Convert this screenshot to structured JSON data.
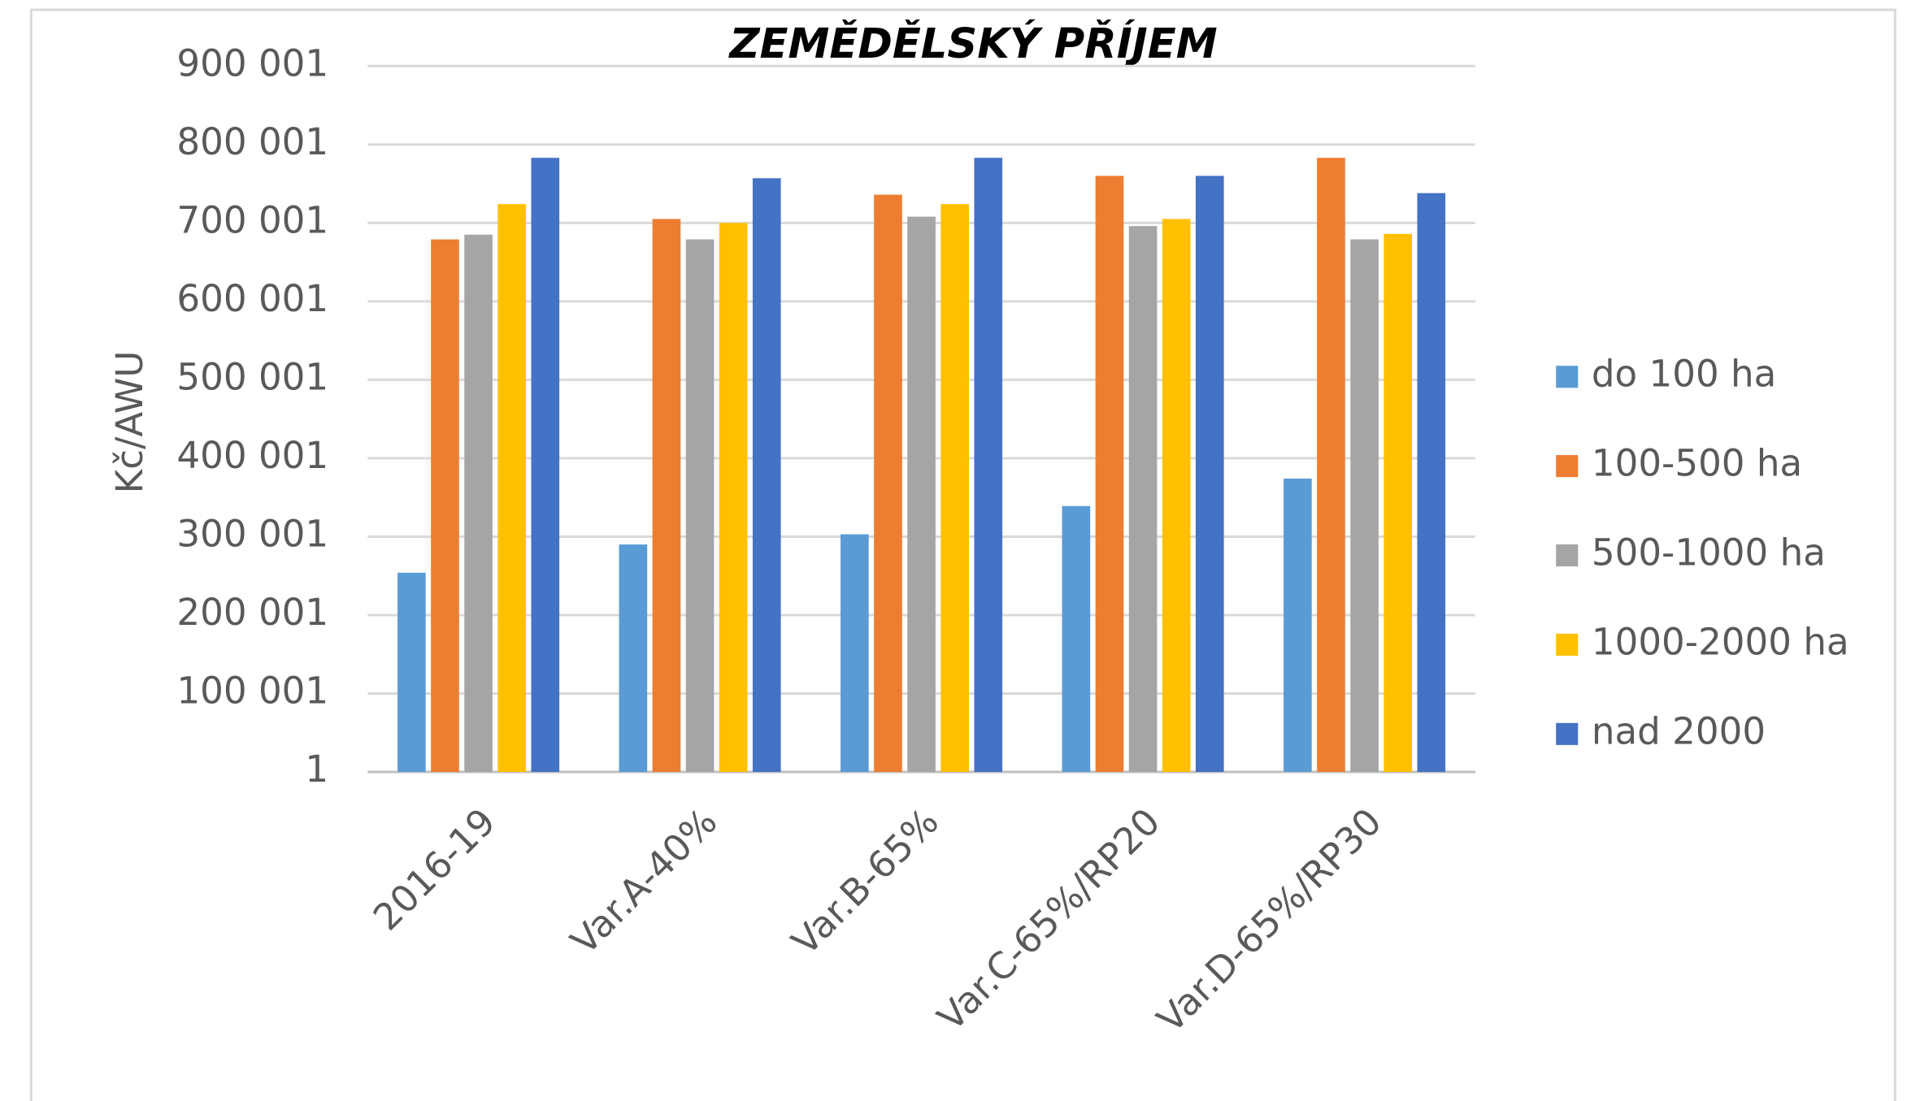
{
  "chart_data": {
    "type": "bar",
    "title": "ZEMĚDĚLSKÝ PŘÍJEM",
    "y_label": "Kč/AWU",
    "categories": [
      "2016-19",
      "Var.A-40%",
      "Var.B-65%",
      "Var.C-65%/RP20",
      "Var.D-65%/RP30"
    ],
    "series": [
      {
        "name": "do 100 ha",
        "color": "#5b9bd5",
        "values": [
          254000,
          290000,
          303000,
          339000,
          374000
        ]
      },
      {
        "name": "100-500 ha",
        "color": "#ed7d31",
        "values": [
          679000,
          705000,
          736000,
          760000,
          783000
        ]
      },
      {
        "name": "500-1000 ha",
        "color": "#a5a5a5",
        "values": [
          685000,
          679000,
          708000,
          696000,
          679000
        ]
      },
      {
        "name": "1000-2000 ha",
        "color": "#ffc000",
        "values": [
          724000,
          700000,
          724000,
          705000,
          686000
        ]
      },
      {
        "name": "nad 2000",
        "color": "#4472c4",
        "values": [
          783000,
          757000,
          783000,
          760000,
          738000
        ]
      }
    ],
    "ylim": [
      1,
      900001
    ],
    "yticks": [
      1,
      {
        "value": 100001,
        "label": "100 001"
      },
      {
        "value": 200001,
        "label": "200 001"
      },
      {
        "value": 300001,
        "label": "300 001"
      },
      {
        "value": 400001,
        "label": "400 001"
      },
      {
        "value": 500001,
        "label": "500 001"
      },
      {
        "value": 600001,
        "label": "600 001"
      },
      {
        "value": 700001,
        "label": "700 001"
      },
      {
        "value": 800001,
        "label": "800 001"
      },
      {
        "value": 900001,
        "label": "900 001"
      }
    ],
    "grid": true,
    "legend": "right"
  }
}
